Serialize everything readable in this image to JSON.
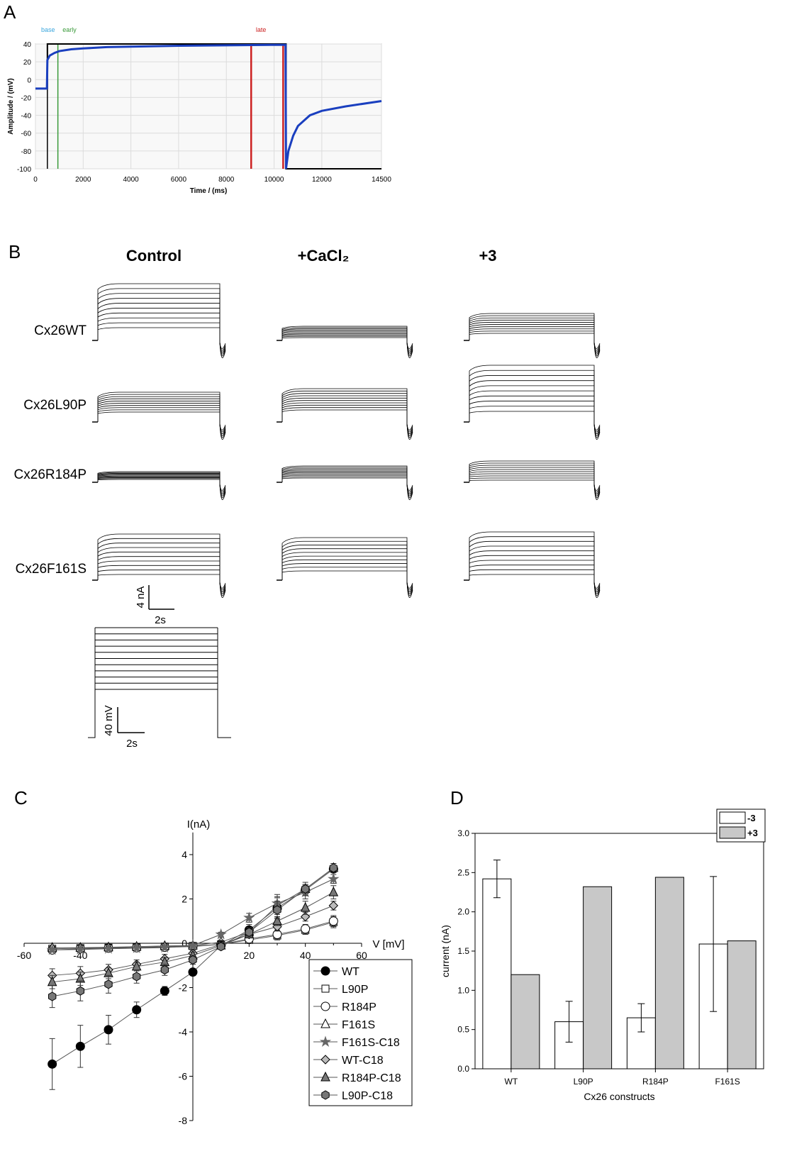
{
  "panels": {
    "a": "A",
    "b": "B",
    "c": "C",
    "d": "D"
  },
  "chart_data": [
    {
      "panel": "A",
      "type": "line",
      "xlabel": "Time / (ms)",
      "ylabel": "Amplitude / (mV)",
      "xlim": [
        0,
        14500
      ],
      "ylim": [
        -100,
        40
      ],
      "xticks": [
        0,
        2000,
        4000,
        6000,
        8000,
        10000,
        12000,
        14500
      ],
      "yticks": [
        40,
        20,
        0,
        -20,
        -40,
        -60,
        -80,
        -100
      ],
      "grid": true,
      "markers": [
        {
          "label": "base",
          "color": "#3aa6dd",
          "x": 0
        },
        {
          "label": "early",
          "color": "#3a9a3a",
          "x": 900
        },
        {
          "label": "late",
          "color": "#cc2222",
          "x": 9000
        }
      ],
      "cursor_lines": [
        {
          "x": 500,
          "color": "#000000"
        },
        {
          "x": 940,
          "color": "#3a9a3a"
        },
        {
          "x": 9040,
          "color": "#cc2222"
        },
        {
          "x": 10380,
          "color": "#cc2222"
        },
        {
          "x": 10500,
          "color": "#1a3fbf"
        }
      ],
      "command_trace": {
        "color": "#000000",
        "x": [
          0,
          500,
          500,
          10500,
          10500,
          14500
        ],
        "y": [
          -10,
          -10,
          40,
          40,
          -100,
          -100
        ]
      },
      "series": [
        {
          "color": "#1a3fbf",
          "x": [
            0,
            480,
            500,
            600,
            800,
            1000,
            1500,
            2000,
            3000,
            4000,
            6000,
            8000,
            10000,
            10480,
            10500,
            10600,
            10800,
            11000,
            11500,
            12000,
            13000,
            14500
          ],
          "y": [
            -10,
            -10,
            22,
            27,
            30,
            32,
            34,
            35,
            36.5,
            37,
            38,
            38.5,
            39,
            39,
            -100,
            -80,
            -63,
            -52,
            -40,
            -35,
            -30,
            -24
          ]
        }
      ]
    },
    {
      "panel": "B",
      "type": "traces",
      "columns": [
        "Control",
        "+CaCl₂",
        "+3"
      ],
      "rows": [
        "Cx26WT",
        "Cx26L90P",
        "Cx26R184P",
        "Cx26F161S"
      ],
      "scale_current": {
        "value": "4 nA",
        "time": "2s"
      },
      "scale_voltage": {
        "value": "40 mV",
        "time": "2s"
      },
      "protocol_steps": 11
    },
    {
      "panel": "C",
      "type": "scatter",
      "xlabel": "V [mV]",
      "ylabel": "I(nA)",
      "xlim": [
        -60,
        60
      ],
      "ylim": [
        -8,
        5
      ],
      "xticks": [
        -60,
        -40,
        20,
        40,
        60
      ],
      "xtick_labels": [
        "-60",
        "-40",
        "20",
        "40",
        "60"
      ],
      "yticks": [
        4,
        2,
        0,
        -2,
        -4,
        -6,
        -8
      ],
      "x": [
        -50,
        -40,
        -30,
        -20,
        -10,
        0,
        10,
        20,
        30,
        40,
        50
      ],
      "series": [
        {
          "name": "WT",
          "marker": "circle",
          "fill": "#000000",
          "values": [
            -5.45,
            -4.65,
            -3.9,
            -3.0,
            -2.15,
            -1.3,
            -0.1,
            0.6,
            1.6,
            2.4,
            3.35
          ],
          "err": [
            1.15,
            0.95,
            0.65,
            0.35,
            0.2,
            0.15,
            0.1,
            0.25,
            0.45,
            0.25,
            0.15
          ]
        },
        {
          "name": "L90P",
          "marker": "square",
          "fill": "#ffffff",
          "values": [
            -0.25,
            -0.22,
            -0.2,
            -0.18,
            -0.15,
            -0.12,
            -0.05,
            0.15,
            0.35,
            0.6,
            0.95
          ],
          "err": [
            0.1,
            0.1,
            0.1,
            0.1,
            0.1,
            0.1,
            0.1,
            0.15,
            0.2,
            0.2,
            0.25
          ]
        },
        {
          "name": "R184P",
          "marker": "circle",
          "fill": "#ffffff",
          "values": [
            -0.3,
            -0.25,
            -0.22,
            -0.2,
            -0.18,
            -0.15,
            -0.05,
            0.2,
            0.4,
            0.65,
            1.0
          ],
          "err": [
            0.1,
            0.1,
            0.1,
            0.1,
            0.1,
            0.1,
            0.1,
            0.15,
            0.2,
            0.2,
            0.25
          ]
        },
        {
          "name": "F161S",
          "marker": "triangle",
          "fill": "#ffffff",
          "values": [
            -0.2,
            -0.2,
            -0.18,
            -0.15,
            -0.12,
            -0.1,
            0.05,
            0.5,
            1.7,
            2.45,
            3.4
          ],
          "err": [
            0.1,
            0.1,
            0.1,
            0.1,
            0.1,
            0.1,
            0.1,
            0.2,
            0.4,
            0.2,
            0.2
          ]
        },
        {
          "name": "F161S-C18",
          "marker": "star",
          "fill": "#666666",
          "values": [
            -0.3,
            -0.28,
            -0.25,
            -0.22,
            -0.2,
            -0.1,
            0.4,
            1.15,
            1.8,
            2.3,
            2.9
          ],
          "err": [
            0.1,
            0.1,
            0.1,
            0.1,
            0.1,
            0.1,
            0.1,
            0.2,
            0.4,
            0.3,
            0.2
          ]
        },
        {
          "name": "WT-C18",
          "marker": "diamond",
          "fill": "#bbbbbb",
          "values": [
            -1.45,
            -1.35,
            -1.2,
            -0.95,
            -0.7,
            -0.45,
            -0.05,
            0.4,
            0.75,
            1.2,
            1.7
          ],
          "err": [
            0.3,
            0.3,
            0.25,
            0.2,
            0.2,
            0.15,
            0.1,
            0.15,
            0.2,
            0.2,
            0.2
          ]
        },
        {
          "name": "R184P-C18",
          "marker": "triangle",
          "fill": "#777777",
          "values": [
            -1.75,
            -1.6,
            -1.35,
            -1.05,
            -0.85,
            -0.55,
            -0.1,
            0.4,
            1.0,
            1.6,
            2.3
          ],
          "err": [
            0.3,
            0.3,
            0.25,
            0.2,
            0.2,
            0.15,
            0.1,
            0.15,
            0.2,
            0.3,
            0.3
          ]
        },
        {
          "name": "L90P-C18",
          "marker": "hexagon",
          "fill": "#777777",
          "values": [
            -2.4,
            -2.15,
            -1.85,
            -1.5,
            -1.2,
            -0.75,
            -0.15,
            0.5,
            1.5,
            2.45,
            3.4
          ],
          "err": [
            0.5,
            0.45,
            0.4,
            0.3,
            0.25,
            0.2,
            0.1,
            0.2,
            0.4,
            0.3,
            0.2
          ]
        }
      ]
    },
    {
      "panel": "D",
      "type": "bar",
      "xlabel": "Cx26 constructs",
      "ylabel": "current (nA)",
      "ylim": [
        0,
        3.0
      ],
      "yticks": [
        0.0,
        0.5,
        1.0,
        1.5,
        2.0,
        2.5,
        3.0
      ],
      "ytick_labels": [
        "0.0",
        "0.5",
        "1.0",
        "1.5",
        "2.0",
        "2.5",
        "3.0"
      ],
      "categories": [
        "WT",
        "L90P",
        "R184P",
        "F161S"
      ],
      "legend_position": "top-right",
      "series": [
        {
          "name": "-3",
          "fill": "#ffffff",
          "values": [
            2.42,
            0.6,
            0.65,
            1.59
          ],
          "err": [
            0.24,
            0.26,
            0.18,
            0.86
          ]
        },
        {
          "name": "+3",
          "fill": "#c8c8c8",
          "values": [
            1.2,
            2.32,
            2.44,
            1.63
          ],
          "err": [
            0,
            0,
            0,
            0
          ]
        }
      ]
    }
  ]
}
